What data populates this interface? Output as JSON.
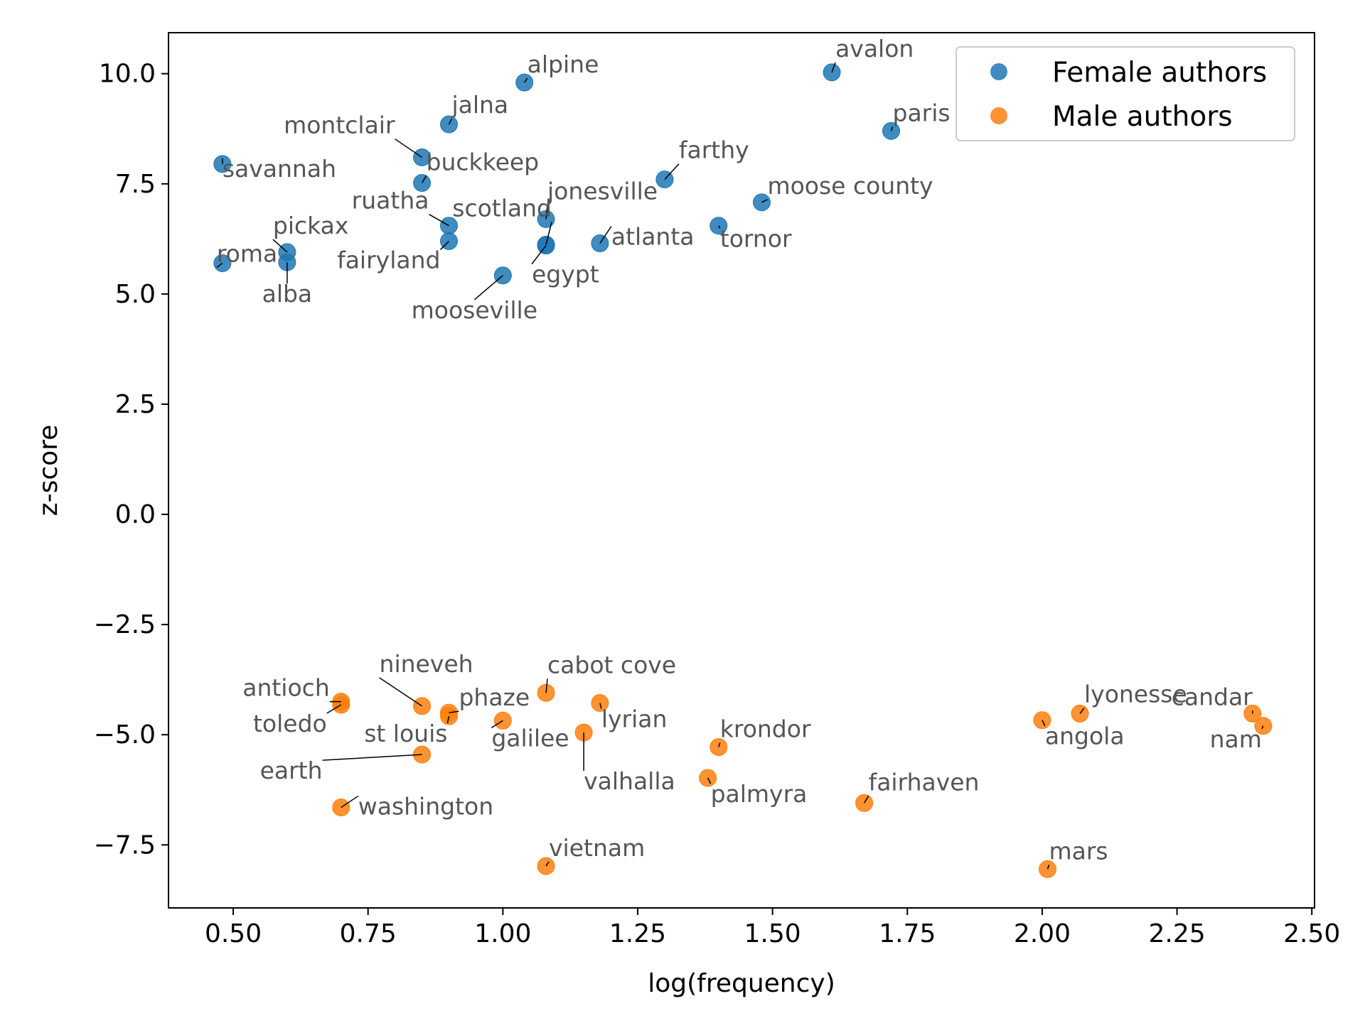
{
  "chart_data": {
    "type": "scatter",
    "xlabel": "log(frequency)",
    "ylabel": "z-score",
    "xlim": [
      0.38,
      2.505
    ],
    "ylim": [
      -8.93,
      10.93
    ],
    "xticks": [
      0.5,
      0.75,
      1.0,
      1.25,
      1.5,
      1.75,
      2.0,
      2.25,
      2.5
    ],
    "xtick_labels": [
      "0.50",
      "0.75",
      "1.00",
      "1.25",
      "1.50",
      "1.75",
      "2.00",
      "2.25",
      "2.50"
    ],
    "yticks": [
      -7.5,
      -5.0,
      -2.5,
      0.0,
      2.5,
      5.0,
      7.5,
      10.0
    ],
    "ytick_labels": [
      "−7.5",
      "−5.0",
      "−2.5",
      "0.0",
      "2.5",
      "5.0",
      "7.5",
      "10.0"
    ],
    "grid": false,
    "legend_position": "top-right",
    "series": [
      {
        "name": "Female authors",
        "color": "#1f77b4",
        "points": [
          {
            "label": "avalon",
            "x": 1.61,
            "y": 10.03
          },
          {
            "label": "alpine",
            "x": 1.04,
            "y": 9.8
          },
          {
            "label": "jalna",
            "x": 0.9,
            "y": 8.85
          },
          {
            "label": "paris",
            "x": 1.72,
            "y": 8.7
          },
          {
            "label": "montclair",
            "x": 0.85,
            "y": 8.1
          },
          {
            "label": "savannah",
            "x": 0.48,
            "y": 7.95
          },
          {
            "label": "farthy",
            "x": 1.3,
            "y": 7.6
          },
          {
            "label": "buckkeep",
            "x": 0.85,
            "y": 7.52
          },
          {
            "label": "moose county",
            "x": 1.48,
            "y": 7.08
          },
          {
            "label": "jonesville",
            "x": 1.08,
            "y": 6.7
          },
          {
            "label": "ruatha",
            "x": 0.9,
            "y": 6.55
          },
          {
            "label": "tornor",
            "x": 1.4,
            "y": 6.55
          },
          {
            "label": "scotland",
            "x": 1.08,
            "y": 6.12
          },
          {
            "label": "egypt",
            "x": 1.08,
            "y": 6.1
          },
          {
            "label": "fairyland",
            "x": 0.9,
            "y": 6.2
          },
          {
            "label": "atlanta",
            "x": 1.18,
            "y": 6.15
          },
          {
            "label": "pickax",
            "x": 0.6,
            "y": 5.95
          },
          {
            "label": "alba",
            "x": 0.6,
            "y": 5.72
          },
          {
            "label": "roma",
            "x": 0.48,
            "y": 5.7
          },
          {
            "label": "mooseville",
            "x": 1.0,
            "y": 5.42
          }
        ]
      },
      {
        "name": "Male authors",
        "color": "#ff7f0e",
        "points": [
          {
            "label": "cabot cove",
            "x": 1.08,
            "y": -4.05
          },
          {
            "label": "antioch",
            "x": 0.7,
            "y": -4.25
          },
          {
            "label": "toledo",
            "x": 0.7,
            "y": -4.32
          },
          {
            "label": "lyrian",
            "x": 1.18,
            "y": -4.28
          },
          {
            "label": "nineveh",
            "x": 0.85,
            "y": -4.35
          },
          {
            "label": "phaze",
            "x": 0.9,
            "y": -4.5
          },
          {
            "label": "st louis",
            "x": 0.9,
            "y": -4.58
          },
          {
            "label": "galilee",
            "x": 1.0,
            "y": -4.68
          },
          {
            "label": "valhalla",
            "x": 1.15,
            "y": -4.95
          },
          {
            "label": "krondor",
            "x": 1.4,
            "y": -5.28
          },
          {
            "label": "earth",
            "x": 0.85,
            "y": -5.45
          },
          {
            "label": "palmyra",
            "x": 1.38,
            "y": -5.98
          },
          {
            "label": "fairhaven",
            "x": 1.67,
            "y": -6.55
          },
          {
            "label": "washington",
            "x": 0.7,
            "y": -6.65
          },
          {
            "label": "vietnam",
            "x": 1.08,
            "y": -7.98
          },
          {
            "label": "mars",
            "x": 2.01,
            "y": -8.05
          },
          {
            "label": "lyonesse",
            "x": 2.07,
            "y": -4.52
          },
          {
            "label": "angola",
            "x": 2.0,
            "y": -4.67
          },
          {
            "label": "candar",
            "x": 2.39,
            "y": -4.52
          },
          {
            "label": "nam",
            "x": 2.41,
            "y": -4.8
          }
        ]
      }
    ]
  }
}
